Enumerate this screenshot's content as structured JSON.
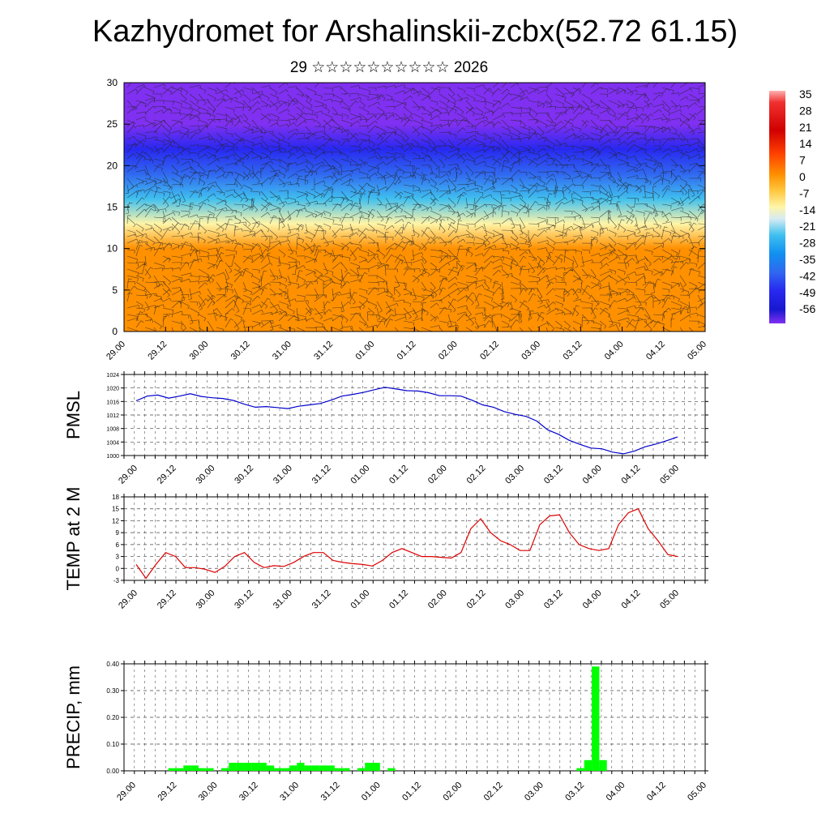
{
  "title": "Kazhydromet for Arshalinskii-zcbx(52.72 61.15)",
  "subtitle": "29 ☆☆☆☆☆☆☆☆☆☆ 2026",
  "x_ticks": [
    "29.00",
    "29.12",
    "30.00",
    "30.12",
    "31.00",
    "31.12",
    "01.00",
    "01.12",
    "02.00",
    "02.12",
    "03.00",
    "03.12",
    "04.00",
    "04.12",
    "05.00"
  ],
  "colorbar": {
    "labels": [
      "35",
      "28",
      "21",
      "14",
      "7",
      "0",
      "-7",
      "-14",
      "-21",
      "-28",
      "-35",
      "-42",
      "-49",
      "-56"
    ],
    "colors": [
      "#ff9a9a",
      "#f02020",
      "#d80000",
      "#ff4a00",
      "#ff8c00",
      "#ffc23a",
      "#fff3a0",
      "#cfe7f0",
      "#4fc4ee",
      "#1a8ef0",
      "#3060f0",
      "#3030f0",
      "#2020e0",
      "#7a2ff0"
    ]
  },
  "chart_data": [
    {
      "type": "heatmap",
      "name": "cross-section",
      "ylim": [
        0,
        30
      ],
      "y_ticks": [
        "0",
        "5",
        "10",
        "15",
        "20",
        "25",
        "30"
      ],
      "level_temps": [
        {
          "level": 0,
          "value": 10
        },
        {
          "level": 5,
          "value": 8
        },
        {
          "level": 10,
          "value": 4
        },
        {
          "level": 13,
          "value": -5
        },
        {
          "level": 16,
          "value": -18
        },
        {
          "level": 19,
          "value": -32
        },
        {
          "level": 22,
          "value": -45
        },
        {
          "level": 25,
          "value": -56
        },
        {
          "level": 30,
          "value": -54
        }
      ]
    },
    {
      "type": "line",
      "ylabel": "PMSL",
      "ylim": [
        1000,
        1024
      ],
      "y_ticks": [
        "1000",
        "1004",
        "1008",
        "1012",
        "1016",
        "1020",
        "1024"
      ],
      "color": "#0000cc",
      "values": [
        1016.2,
        1017.6,
        1017.9,
        1017.0,
        1017.6,
        1018.3,
        1017.5,
        1017.1,
        1016.9,
        1016.3,
        1015.2,
        1014.3,
        1014.5,
        1014.2,
        1013.9,
        1014.6,
        1015.0,
        1015.4,
        1016.4,
        1017.6,
        1018.1,
        1018.7,
        1019.5,
        1020.2,
        1019.7,
        1019.2,
        1019.1,
        1018.6,
        1017.7,
        1017.7,
        1017.6,
        1016.4,
        1015.0,
        1014.3,
        1013.0,
        1012.2,
        1011.6,
        1010.2,
        1007.6,
        1006.3,
        1004.5,
        1003.3,
        1002.2,
        1002.0,
        1001.0,
        1000.5,
        1001.3,
        1002.6,
        1003.4,
        1004.4,
        1005.5
      ]
    },
    {
      "type": "line",
      "ylabel": "TEMP at 2 M",
      "ylim": [
        -3,
        18
      ],
      "y_ticks": [
        "-3",
        "0",
        "3",
        "6",
        "9",
        "12",
        "15",
        "18"
      ],
      "color": "#dd0000",
      "values": [
        1,
        -2.5,
        1,
        4,
        3,
        0.2,
        0.2,
        -0.2,
        -1,
        0.5,
        3,
        4,
        1.5,
        0.2,
        0.7,
        0.5,
        1.5,
        3,
        4,
        4,
        2,
        1.5,
        1.2,
        1,
        0.6,
        2,
        4,
        5,
        4,
        3,
        3,
        2.8,
        2.6,
        4,
        10,
        12.5,
        9,
        7,
        6,
        4.5,
        4.5,
        11,
        13.2,
        13.5,
        9,
        6,
        5,
        4.5,
        5,
        11,
        14,
        15,
        10,
        7,
        3.5,
        3
      ]
    },
    {
      "type": "bar",
      "ylabel": "PRECIP, mm",
      "ylim": [
        0,
        0.4
      ],
      "y_ticks": [
        "0.00",
        "0.10",
        "0.20",
        "0.30",
        "0.40"
      ],
      "color": "#00ff00",
      "values": [
        0,
        0,
        0,
        0,
        0,
        0.01,
        0.01,
        0.02,
        0.02,
        0.01,
        0.01,
        0,
        0.01,
        0.03,
        0.03,
        0.03,
        0.03,
        0.03,
        0.02,
        0.01,
        0.01,
        0.02,
        0.03,
        0.02,
        0.02,
        0.02,
        0.02,
        0.01,
        0.01,
        0,
        0.01,
        0.03,
        0.03,
        0,
        0.01,
        0,
        0,
        0,
        0,
        0,
        0,
        0,
        0,
        0,
        0,
        0,
        0,
        0,
        0,
        0,
        0,
        0,
        0,
        0,
        0,
        0,
        0,
        0,
        0,
        0.01,
        0.04,
        0.39,
        0.04,
        0,
        0,
        0,
        0,
        0,
        0,
        0,
        0,
        0,
        0,
        0,
        0,
        0
      ]
    }
  ]
}
